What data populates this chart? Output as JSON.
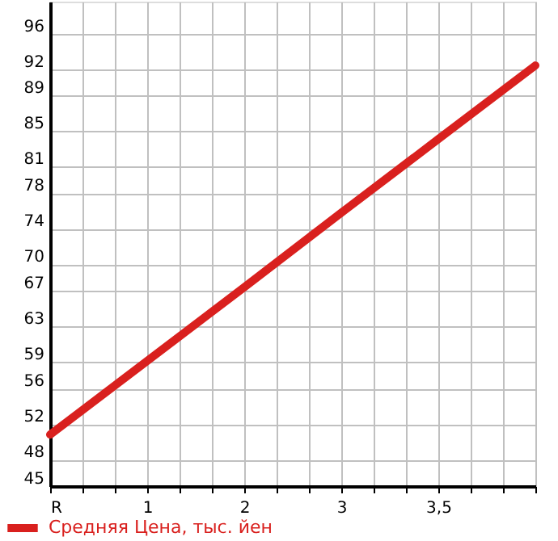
{
  "chart_data": {
    "type": "line",
    "categories": [
      "R",
      "1",
      "2",
      "3",
      "3,5",
      null
    ],
    "series": [
      {
        "name": "Средняя Цена, тыс. йен",
        "color": "#d9201e",
        "values": [
          50.8,
          59.1,
          67.4,
          75.8,
          84.1,
          92.4
        ]
      }
    ],
    "ylim": [
      45,
      99.6
    ],
    "yticks": [
      45,
      48,
      52,
      56,
      59,
      63,
      67,
      70,
      74,
      78,
      81,
      85,
      89,
      92,
      96
    ],
    "grid": true,
    "legend": "bottom left",
    "line_style": "solid",
    "marker": "none"
  }
}
